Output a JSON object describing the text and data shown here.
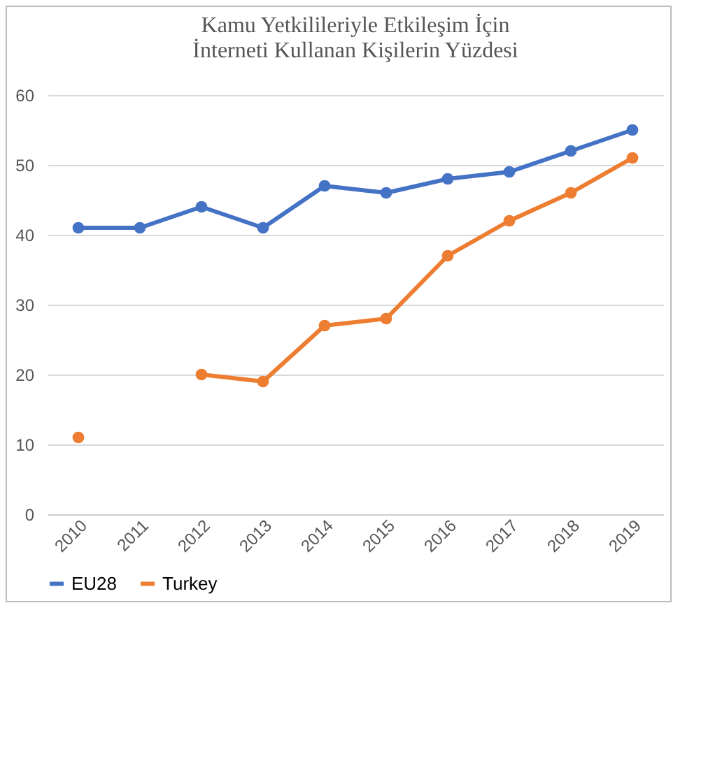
{
  "chart_data": {
    "type": "line",
    "title": "Kamu Yetkilileriyle Etkileşim İçin\nİnterneti Kullanan Kişilerin Yüzdesi",
    "categories": [
      "2010",
      "2011",
      "2012",
      "2013",
      "2014",
      "2015",
      "2016",
      "2017",
      "2018",
      "2019"
    ],
    "series": [
      {
        "name": "EU28",
        "color": "#4472c4",
        "values": [
          41,
          41,
          44,
          41,
          47,
          46,
          48,
          49,
          52,
          55
        ]
      },
      {
        "name": "Turkey",
        "color": "#ed7d31",
        "values": [
          11,
          null,
          20,
          19,
          27,
          28,
          37,
          42,
          46,
          51
        ]
      }
    ],
    "ylim": [
      0,
      60
    ],
    "yticks": [
      0,
      10,
      20,
      30,
      40,
      50,
      60
    ],
    "grid": "y",
    "legend": "bottom",
    "marker": "circle",
    "line_style": "solid"
  }
}
